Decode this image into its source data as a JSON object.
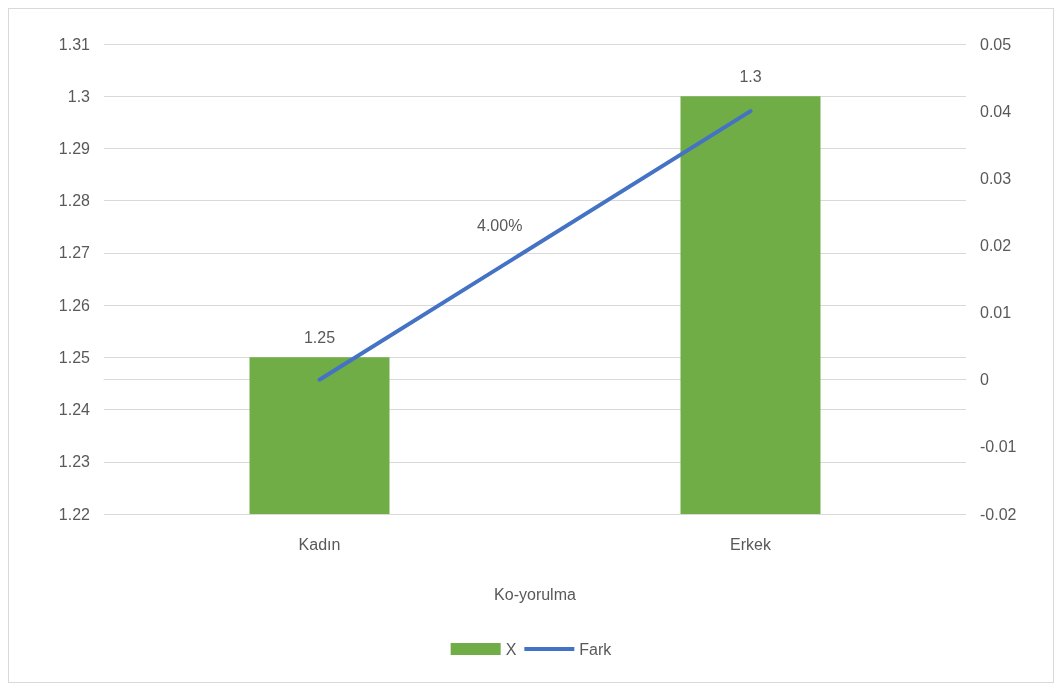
{
  "chart_data": {
    "type": "bar",
    "categories": [
      "Kadın",
      "Erkek"
    ],
    "xlabel": "Ko-yorulma",
    "series": [
      {
        "name": "X",
        "color": "#70ad47",
        "values": [
          1.25,
          1.3
        ],
        "value_labels": [
          "1.25",
          "1.3"
        ]
      },
      {
        "name": "Fark",
        "type": "line",
        "axis": "y2",
        "color": "#4472c4",
        "values": [
          0,
          0.04
        ]
      }
    ],
    "ylim": [
      1.22,
      1.31
    ],
    "yticks": [
      1.22,
      1.23,
      1.24,
      1.25,
      1.26,
      1.27,
      1.28,
      1.29,
      1.3,
      1.31
    ],
    "y2lim": [
      -0.02,
      0.05
    ],
    "y2ticks": [
      -0.02,
      -0.01,
      0,
      0.01,
      0.02,
      0.03,
      0.04,
      0.05
    ],
    "annotations": [
      "4.00%"
    ],
    "grid": "y",
    "legend": "bottom",
    "marker": "none",
    "line_style": "solid"
  }
}
